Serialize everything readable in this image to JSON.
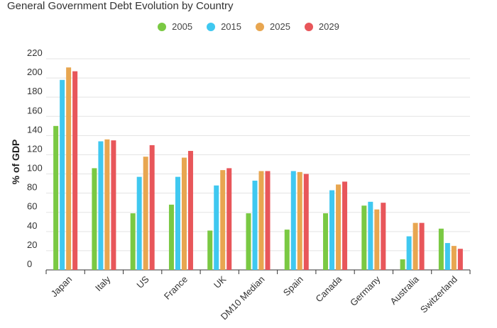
{
  "chart_data": {
    "type": "bar",
    "title": "General Government Debt Evolution by Country",
    "xlabel": "",
    "ylabel": "% of GDP",
    "ylim": [
      0,
      220
    ],
    "yticks": [
      0,
      20,
      40,
      60,
      80,
      100,
      120,
      140,
      160,
      180,
      200,
      220
    ],
    "grid": true,
    "legend_position": "top-center",
    "categories": [
      "Japan",
      "Italy",
      "US",
      "France",
      "UK",
      "DM10 Median",
      "Spain",
      "Canada",
      "Germany",
      "Australia",
      "Switzerland"
    ],
    "series": [
      {
        "name": "2005",
        "color": "#7ac943",
        "values": [
          150,
          106,
          59,
          68,
          41,
          59,
          42,
          59,
          67,
          11,
          43
        ]
      },
      {
        "name": "2015",
        "color": "#3fc8f0",
        "values": [
          198,
          134,
          97,
          97,
          88,
          93,
          103,
          83,
          71,
          35,
          28
        ]
      },
      {
        "name": "2025",
        "color": "#e8a650",
        "values": [
          211,
          136,
          118,
          117,
          104,
          103,
          102,
          89,
          63,
          49,
          25
        ]
      },
      {
        "name": "2029",
        "color": "#e8565a",
        "values": [
          207,
          135,
          130,
          124,
          106,
          103,
          100,
          92,
          70,
          49,
          22
        ]
      }
    ]
  }
}
